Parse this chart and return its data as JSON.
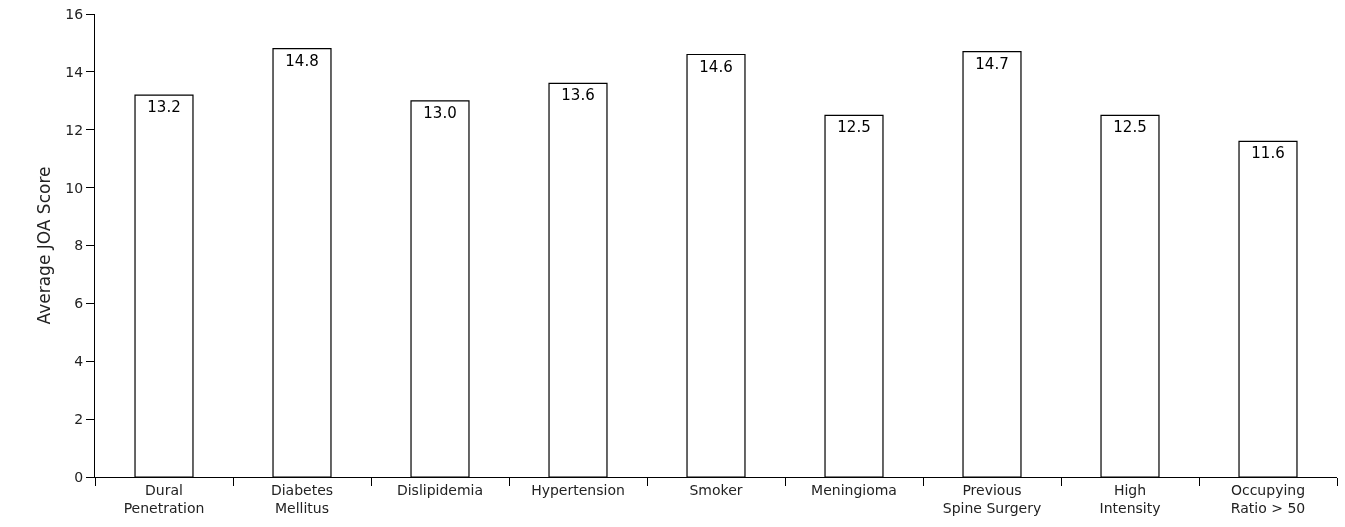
{
  "chart_data": {
    "type": "bar",
    "ylabel": "Average JOA Score",
    "categories": [
      "Dural Penetration",
      "Diabetes Mellitus",
      "Dislipidemia",
      "Hypertension",
      "Smoker",
      "Meningioma",
      "Previous Spine Surgery",
      "High Intensity",
      "Occupying Ratio > 50"
    ],
    "values": [
      13.2,
      14.8,
      13.0,
      13.6,
      14.6,
      12.5,
      14.7,
      12.5,
      11.6
    ],
    "value_labels": [
      "13.2",
      "14.8",
      "13.0",
      "13.6",
      "14.6",
      "12.5",
      "14.7",
      "12.5",
      "11.6"
    ],
    "color": "#ffffff",
    "ylim": [
      0,
      16
    ],
    "yticks": [
      0,
      2,
      4,
      6,
      8,
      10,
      12,
      14,
      16
    ],
    "grid": false
  }
}
